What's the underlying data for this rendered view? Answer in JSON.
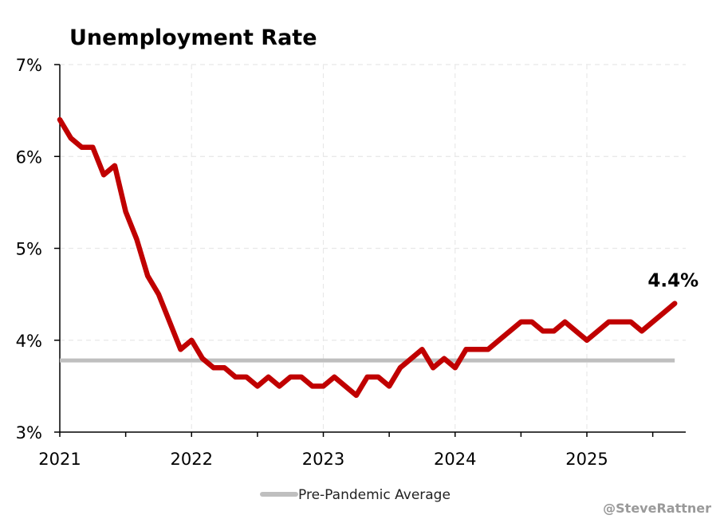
{
  "chart_data": {
    "type": "line",
    "title": "Unemployment Rate",
    "xlabel": "",
    "ylabel": "",
    "x_tick_labels": [
      "2021",
      "2022",
      "2023",
      "2024",
      "2025"
    ],
    "y_tick_labels": [
      "7%",
      "6%",
      "5%",
      "4%",
      "3%"
    ],
    "ylim": [
      3,
      7
    ],
    "xlim": [
      0,
      57
    ],
    "grid": true,
    "series": [
      {
        "name": "Unemployment Rate",
        "color": "#c00000",
        "start": "2021-01",
        "values": [
          6.4,
          6.2,
          6.1,
          6.1,
          5.8,
          5.9,
          5.4,
          5.1,
          4.7,
          4.5,
          4.2,
          3.9,
          4.0,
          3.8,
          3.7,
          3.7,
          3.6,
          3.6,
          3.5,
          3.6,
          3.5,
          3.6,
          3.6,
          3.5,
          3.5,
          3.6,
          3.5,
          3.4,
          3.6,
          3.6,
          3.5,
          3.7,
          3.8,
          3.9,
          3.7,
          3.8,
          3.7,
          3.9,
          3.9,
          3.9,
          4.0,
          4.1,
          4.2,
          4.2,
          4.1,
          4.1,
          4.2,
          4.1,
          4.0,
          4.1,
          4.2,
          4.2,
          4.2,
          4.1,
          4.2,
          4.3,
          4.4
        ]
      }
    ],
    "reference_lines": [
      {
        "name": "Pre-Pandemic Average",
        "value": 3.78,
        "color": "#bfbfbf"
      }
    ],
    "annotations": [
      {
        "text": "4.4%",
        "attach": "series-end"
      }
    ],
    "legend": {
      "position": "bottom",
      "entries": [
        "Pre-Pandemic Average"
      ]
    }
  },
  "credit": "@SteveRattner"
}
